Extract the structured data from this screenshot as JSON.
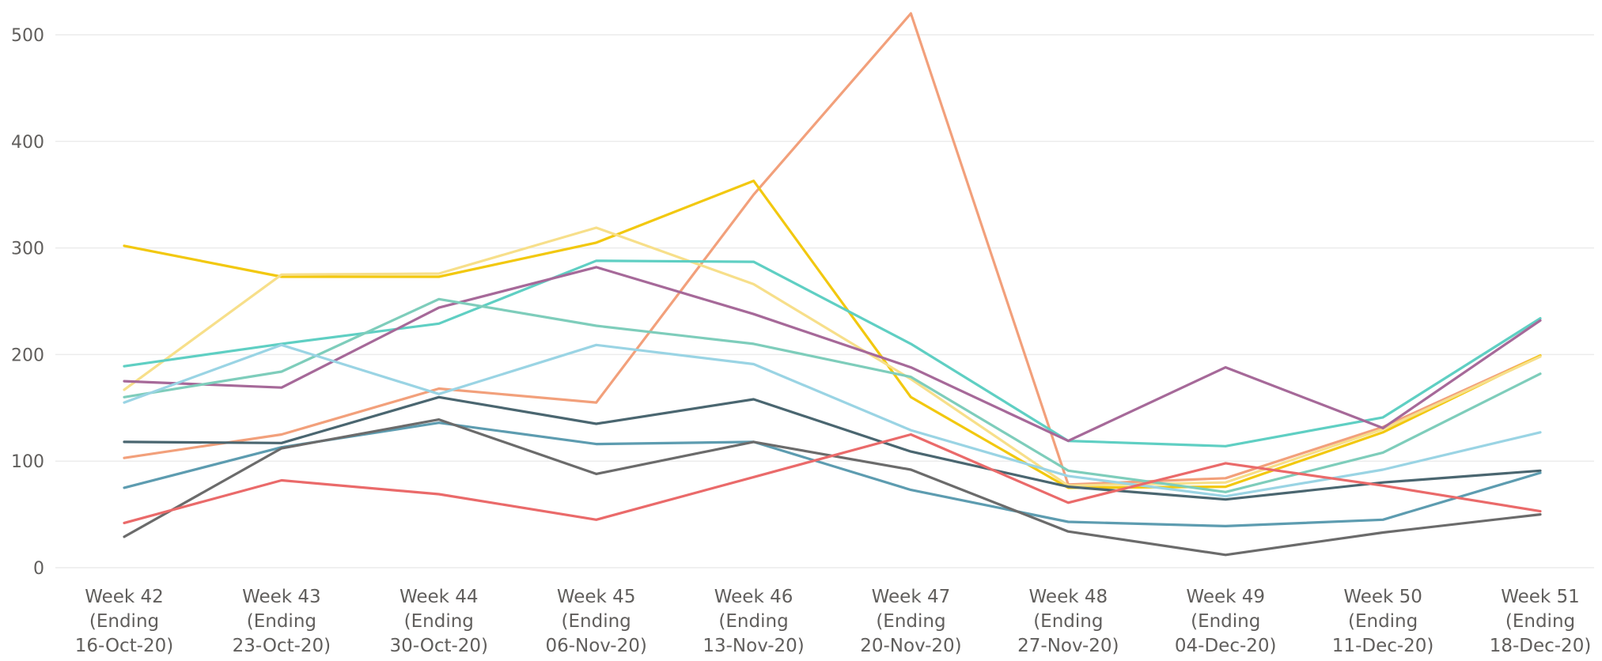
{
  "chart_data": {
    "type": "line",
    "title": "",
    "xlabel": "",
    "ylabel": "",
    "ylim": [
      0,
      500
    ],
    "yticks": [
      "0",
      "100",
      "200",
      "300",
      "400",
      "500"
    ],
    "grid": true,
    "categories": [
      [
        "Week 42",
        "(Ending",
        "16-Oct-20)"
      ],
      [
        "Week 43",
        "(Ending",
        "23-Oct-20)"
      ],
      [
        "Week 44",
        "(Ending",
        "30-Oct-20)"
      ],
      [
        "Week 45",
        "(Ending",
        "06-Nov-20)"
      ],
      [
        "Week 46",
        "(Ending",
        "13-Nov-20)"
      ],
      [
        "Week 47",
        "(Ending",
        "20-Nov-20)"
      ],
      [
        "Week 48",
        "(Ending",
        "27-Nov-20)"
      ],
      [
        "Week 49",
        "(Ending",
        "04-Dec-20)"
      ],
      [
        "Week 50",
        "(Ending",
        "11-Dec-20)"
      ],
      [
        "Week 51",
        "(Ending",
        "18-Dec-20)"
      ]
    ],
    "series": [
      {
        "color": "#f2a07b",
        "values": [
          103,
          125,
          168,
          155,
          350,
          520,
          78,
          84,
          132,
          199
        ]
      },
      {
        "color": "#f2c80f",
        "values": [
          302,
          273,
          273,
          305,
          363,
          160,
          75,
          76,
          127,
          199
        ]
      },
      {
        "color": "#f7df8a",
        "values": [
          167,
          275,
          276,
          319,
          266,
          177,
          77,
          80,
          130,
          198
        ]
      },
      {
        "color": "#5fcfc3",
        "values": [
          189,
          210,
          229,
          288,
          287,
          210,
          119,
          114,
          141,
          234
        ]
      },
      {
        "color": "#a66999",
        "values": [
          175,
          169,
          244,
          282,
          238,
          188,
          119,
          188,
          131,
          232
        ]
      },
      {
        "color": "#7ecdbb",
        "values": [
          160,
          184,
          252,
          227,
          210,
          179,
          91,
          71,
          108,
          182
        ]
      },
      {
        "color": "#9ad4e4",
        "values": [
          155,
          209,
          163,
          209,
          191,
          129,
          86,
          67,
          92,
          127
        ]
      },
      {
        "color": "#4a6670",
        "values": [
          118,
          117,
          160,
          135,
          158,
          109,
          76,
          64,
          80,
          91
        ]
      },
      {
        "color": "#5d9cb0",
        "values": [
          75,
          113,
          136,
          116,
          118,
          73,
          43,
          39,
          45,
          89
        ]
      },
      {
        "color": "#6b6b6b",
        "values": [
          29,
          112,
          139,
          88,
          118,
          92,
          34,
          12,
          33,
          50
        ]
      },
      {
        "color": "#ea6a6a",
        "values": [
          42,
          82,
          69,
          45,
          85,
          125,
          61,
          98,
          77,
          53
        ]
      }
    ]
  }
}
